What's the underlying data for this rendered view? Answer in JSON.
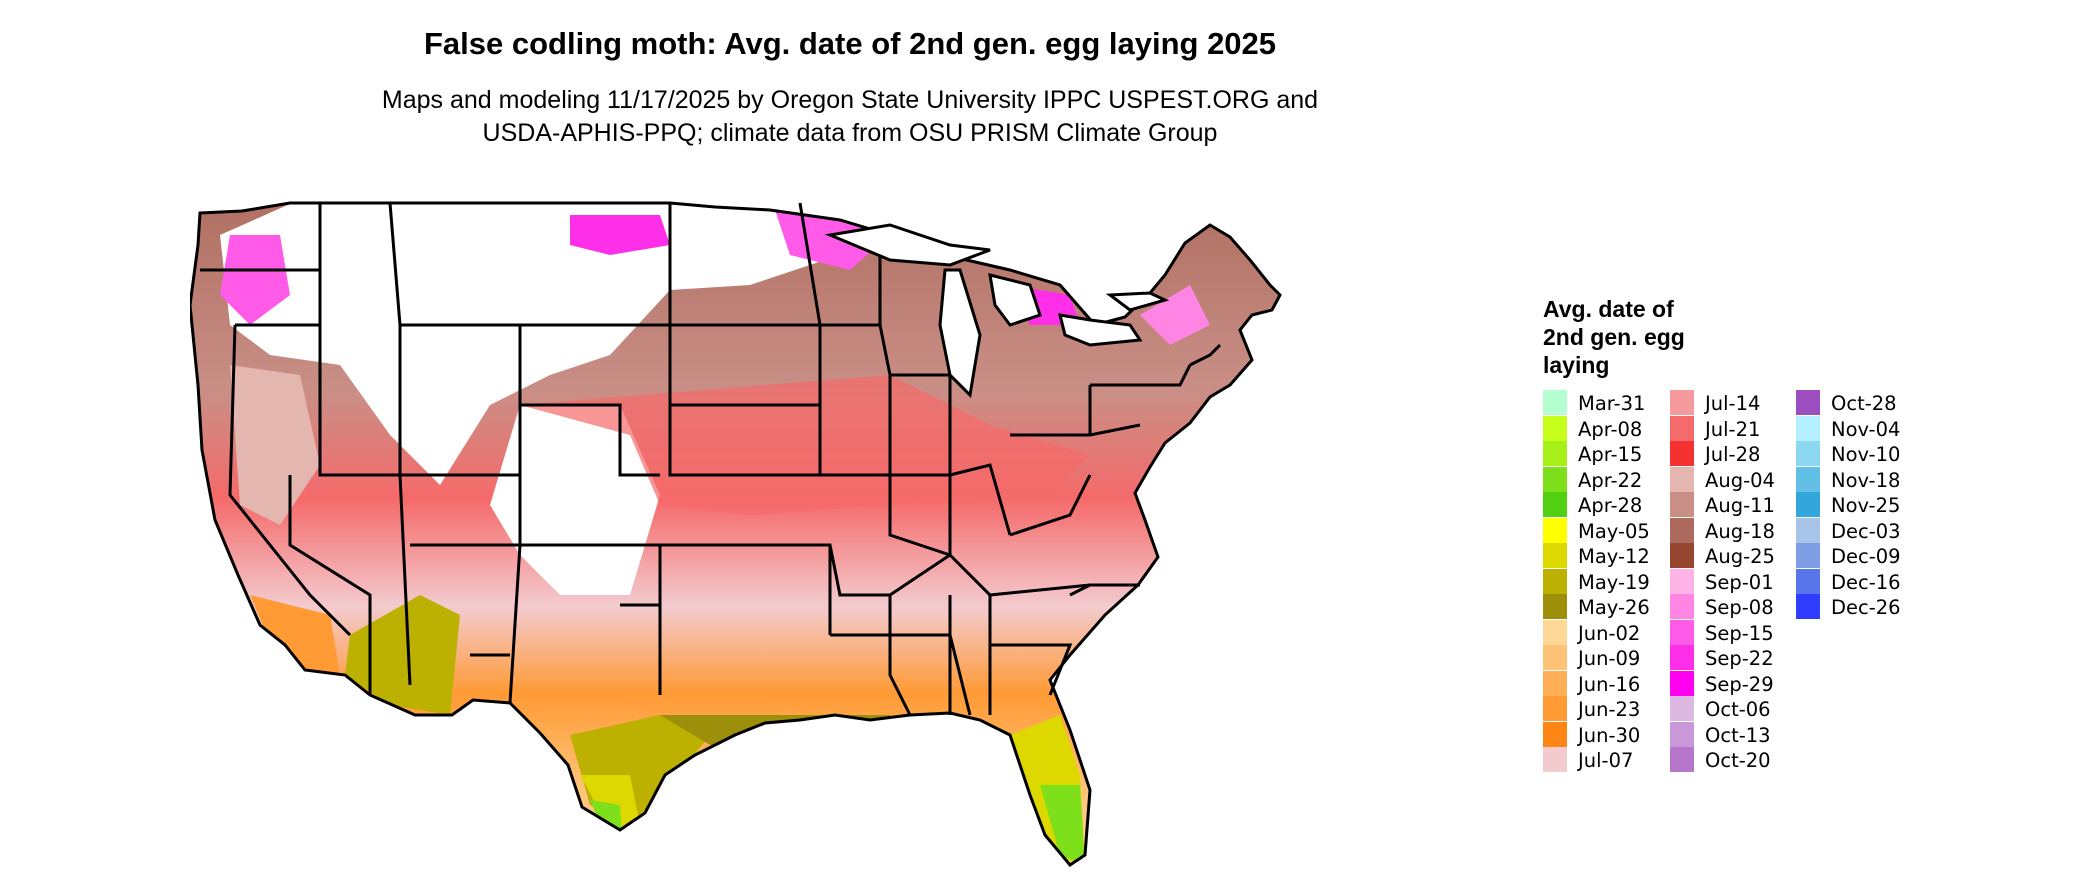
{
  "header": {
    "title": "False codling moth: Avg. date of 2nd gen. egg laying 2025",
    "subtitle_line1": "Maps and modeling 11/17/2025 by Oregon State University IPPC USPEST.ORG and",
    "subtitle_line2": "USDA-APHIS-PPQ; climate data from OSU PRISM Climate Group"
  },
  "legend": {
    "title_line1": "Avg. date of",
    "title_line2": "2nd gen. egg",
    "title_line3": "laying",
    "columns": [
      [
        {
          "label": "Mar-31",
          "color": "#b3ffcf"
        },
        {
          "label": "Apr-08",
          "color": "#c6ff1a"
        },
        {
          "label": "Apr-15",
          "color": "#a8f01a"
        },
        {
          "label": "Apr-22",
          "color": "#7ee01a"
        },
        {
          "label": "Apr-28",
          "color": "#50d010"
        },
        {
          "label": "May-05",
          "color": "#ffff00"
        },
        {
          "label": "May-12",
          "color": "#ddd800"
        },
        {
          "label": "May-19",
          "color": "#bcb000"
        },
        {
          "label": "May-26",
          "color": "#9e8f0a"
        },
        {
          "label": "Jun-02",
          "color": "#ffd898"
        },
        {
          "label": "Jun-09",
          "color": "#ffc378"
        },
        {
          "label": "Jun-16",
          "color": "#ffae55"
        },
        {
          "label": "Jun-23",
          "color": "#ff9a35"
        },
        {
          "label": "Jun-30",
          "color": "#ff8515"
        },
        {
          "label": "Jul-07",
          "color": "#f3cbcf"
        }
      ],
      [
        {
          "label": "Jul-14",
          "color": "#f5999c"
        },
        {
          "label": "Jul-21",
          "color": "#f56a6a"
        },
        {
          "label": "Jul-28",
          "color": "#f53232"
        },
        {
          "label": "Aug-04",
          "color": "#e3b6b0"
        },
        {
          "label": "Aug-11",
          "color": "#c98f86"
        },
        {
          "label": "Aug-18",
          "color": "#ad6b5e"
        },
        {
          "label": "Aug-25",
          "color": "#96452f"
        },
        {
          "label": "Sep-01",
          "color": "#ffb3e6"
        },
        {
          "label": "Sep-08",
          "color": "#ff85e4"
        },
        {
          "label": "Sep-15",
          "color": "#ff5ae8"
        },
        {
          "label": "Sep-22",
          "color": "#ff2ee8"
        },
        {
          "label": "Sep-29",
          "color": "#ff00f0"
        },
        {
          "label": "Oct-06",
          "color": "#ddb8e3"
        },
        {
          "label": "Oct-13",
          "color": "#c898d8"
        },
        {
          "label": "Oct-20",
          "color": "#b576cc"
        }
      ],
      [
        {
          "label": "Oct-28",
          "color": "#9e4fbf"
        },
        {
          "label": "Nov-04",
          "color": "#b3f0ff"
        },
        {
          "label": "Nov-10",
          "color": "#8cd8f2"
        },
        {
          "label": "Nov-18",
          "color": "#62bfe8"
        },
        {
          "label": "Nov-25",
          "color": "#33a6db"
        },
        {
          "label": "Dec-03",
          "color": "#a8c4e8"
        },
        {
          "label": "Dec-09",
          "color": "#7f9ee6"
        },
        {
          "label": "Dec-16",
          "color": "#5676ea"
        },
        {
          "label": "Dec-26",
          "color": "#2e3dff"
        }
      ]
    ]
  }
}
